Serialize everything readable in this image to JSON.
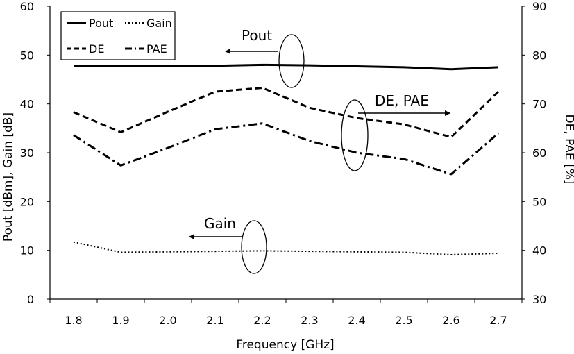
{
  "chart_data": {
    "type": "line",
    "xlabel": "Frequency [GHz]",
    "ylabel_left": "Pout [dBm], Gain [dB]",
    "ylabel_right": "DE, PAE [%]",
    "x": [
      "1.8",
      "1.9",
      "2.0",
      "2.1",
      "2.2",
      "2.3",
      "2.4",
      "2.5",
      "2.6",
      "2.7"
    ],
    "ylim_left": [
      0,
      60
    ],
    "ylim_right": [
      30,
      90
    ],
    "yticks_left": [
      "0",
      "10",
      "20",
      "30",
      "40",
      "50",
      "60"
    ],
    "yticks_right": [
      "30",
      "40",
      "50",
      "60",
      "70",
      "80",
      "90"
    ],
    "grid": false,
    "legend_position": "top-left",
    "series": [
      {
        "name": "Pout",
        "axis": "left",
        "style": "solid",
        "values": [
          47.7,
          47.7,
          47.7,
          47.8,
          48.0,
          47.9,
          47.7,
          47.5,
          47.1,
          47.5
        ]
      },
      {
        "name": "Gain",
        "axis": "left",
        "style": "dotted",
        "values": [
          11.7,
          9.6,
          9.7,
          9.8,
          9.9,
          9.8,
          9.7,
          9.6,
          9.1,
          9.4
        ]
      },
      {
        "name": "DE",
        "axis": "right",
        "style": "dashed",
        "values": [
          68.3,
          64.2,
          68.4,
          72.5,
          73.3,
          69.2,
          67.1,
          65.8,
          63.2,
          72.5
        ]
      },
      {
        "name": "PAE",
        "axis": "right",
        "style": "dashdot",
        "values": [
          63.6,
          57.4,
          61.0,
          64.8,
          66.0,
          62.4,
          60.0,
          58.7,
          55.6,
          64.0
        ]
      }
    ],
    "annotations": [
      {
        "text": "Pout",
        "arrow": "left"
      },
      {
        "text": "DE, PAE",
        "arrow": "right"
      },
      {
        "text": "Gain",
        "arrow": "left"
      }
    ]
  }
}
